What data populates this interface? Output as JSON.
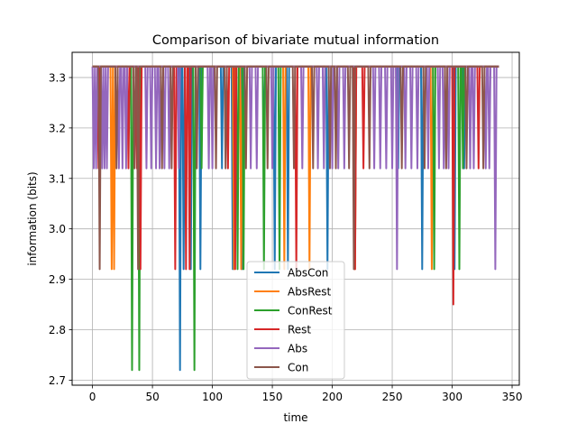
{
  "chart_data": {
    "type": "line",
    "title": "Comparison of bivariate mutual information",
    "xlabel": "time",
    "ylabel": "information (bits)",
    "xlim": [
      -17,
      356
    ],
    "ylim": [
      2.69,
      3.35
    ],
    "xticks": [
      0,
      50,
      100,
      150,
      200,
      250,
      300,
      350
    ],
    "yticks": [
      2.7,
      2.8,
      2.9,
      3.0,
      3.1,
      3.2,
      3.3
    ],
    "ytick_labels": [
      "2.7",
      "2.8",
      "2.9",
      "3.0",
      "3.1",
      "3.2",
      "3.3"
    ],
    "grid": true,
    "legend_position": "lower center",
    "baseline": 3.3219,
    "x_max": 339,
    "series": [
      {
        "name": "AbsCon",
        "color": "#1f77b4",
        "dips": [
          [
            73,
            2.72
          ],
          [
            76,
            2.92
          ],
          [
            82,
            2.92
          ],
          [
            90,
            2.92
          ],
          [
            108,
            3.12
          ],
          [
            117,
            2.92
          ],
          [
            125,
            2.92
          ],
          [
            143,
            3.12
          ],
          [
            152,
            2.92
          ],
          [
            163,
            2.92
          ],
          [
            196,
            2.92
          ],
          [
            255,
            3.12
          ],
          [
            275,
            2.92
          ],
          [
            302,
            2.92
          ],
          [
            310,
            3.12
          ]
        ]
      },
      {
        "name": "AbsRest",
        "color": "#ff7f0e",
        "dips": [
          [
            16,
            2.92
          ],
          [
            18,
            2.92
          ],
          [
            118,
            2.92
          ],
          [
            124,
            2.92
          ],
          [
            160,
            2.92
          ],
          [
            181,
            2.92
          ],
          [
            219,
            2.92
          ],
          [
            283,
            2.92
          ]
        ]
      },
      {
        "name": "ConRest",
        "color": "#2ca02c",
        "dips": [
          [
            33,
            2.72
          ],
          [
            39,
            2.72
          ],
          [
            85,
            2.72
          ],
          [
            91,
            3.12
          ],
          [
            121,
            2.92
          ],
          [
            126,
            2.92
          ],
          [
            143,
            2.92
          ],
          [
            156,
            2.92
          ],
          [
            285,
            2.92
          ],
          [
            306,
            2.92
          ],
          [
            309,
            3.12
          ]
        ]
      },
      {
        "name": "Rest",
        "color": "#d62728",
        "dips": [
          [
            5,
            3.12
          ],
          [
            30,
            3.12
          ],
          [
            37,
            3.12
          ],
          [
            40,
            2.92
          ],
          [
            69,
            2.92
          ],
          [
            78,
            2.92
          ],
          [
            81,
            2.92
          ],
          [
            113,
            3.12
          ],
          [
            119,
            2.92
          ],
          [
            170,
            2.92
          ],
          [
            219,
            2.92
          ],
          [
            226,
            3.12
          ],
          [
            301,
            2.85
          ],
          [
            322,
            3.12
          ]
        ]
      },
      {
        "name": "Abs",
        "color": "#9467bd",
        "dips": [
          [
            1,
            3.12
          ],
          [
            3,
            3.12
          ],
          [
            8,
            3.12
          ],
          [
            10,
            3.12
          ],
          [
            12,
            3.12
          ],
          [
            22,
            3.12
          ],
          [
            25,
            3.12
          ],
          [
            28,
            3.12
          ],
          [
            45,
            3.12
          ],
          [
            49,
            3.12
          ],
          [
            53,
            3.12
          ],
          [
            56,
            3.12
          ],
          [
            60,
            3.12
          ],
          [
            64,
            3.12
          ],
          [
            72,
            3.12
          ],
          [
            97,
            3.12
          ],
          [
            100,
            3.12
          ],
          [
            132,
            3.12
          ],
          [
            137,
            3.12
          ],
          [
            150,
            3.12
          ],
          [
            175,
            3.12
          ],
          [
            188,
            3.12
          ],
          [
            193,
            3.12
          ],
          [
            200,
            3.12
          ],
          [
            205,
            3.12
          ],
          [
            210,
            3.12
          ],
          [
            235,
            3.12
          ],
          [
            240,
            3.12
          ],
          [
            245,
            3.12
          ],
          [
            250,
            3.12
          ],
          [
            254,
            2.92
          ],
          [
            261,
            3.12
          ],
          [
            266,
            3.12
          ],
          [
            271,
            3.12
          ],
          [
            280,
            3.12
          ],
          [
            289,
            3.12
          ],
          [
            293,
            3.12
          ],
          [
            297,
            3.12
          ],
          [
            315,
            3.12
          ],
          [
            318,
            3.12
          ],
          [
            328,
            3.12
          ],
          [
            331,
            3.12
          ],
          [
            336,
            2.92
          ]
        ]
      },
      {
        "name": "Con",
        "color": "#8c564b",
        "dips": [
          [
            6,
            2.92
          ],
          [
            20,
            3.12
          ],
          [
            35,
            3.12
          ],
          [
            38,
            2.92
          ],
          [
            58,
            3.12
          ],
          [
            66,
            3.12
          ],
          [
            87,
            3.12
          ],
          [
            103,
            3.12
          ],
          [
            111,
            3.12
          ],
          [
            128,
            3.12
          ],
          [
            146,
            3.12
          ],
          [
            168,
            3.12
          ],
          [
            184,
            3.12
          ],
          [
            198,
            3.12
          ],
          [
            203,
            3.12
          ],
          [
            214,
            3.12
          ],
          [
            218,
            2.92
          ],
          [
            231,
            3.12
          ],
          [
            258,
            3.12
          ],
          [
            277,
            3.12
          ],
          [
            295,
            3.12
          ],
          [
            312,
            3.12
          ],
          [
            326,
            3.12
          ]
        ]
      }
    ]
  }
}
